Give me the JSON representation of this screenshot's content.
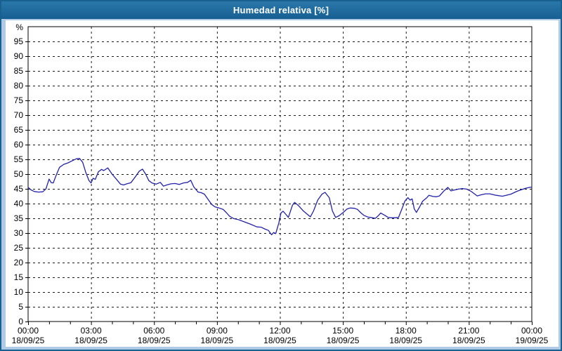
{
  "window": {
    "title": "Humedad relativa [%]"
  },
  "colors": {
    "titlebar_bg": "#1A689C",
    "outer_bg": "#AECAE4",
    "outer_border": "#17608F",
    "panel_bg": "#FFFFFF",
    "line": "#2121AA",
    "grid": "#1A1A1A",
    "text": "#000000"
  },
  "chart_data": {
    "type": "line",
    "title": "Humedad relativa [%]",
    "ylabel": "%",
    "xlabel": "",
    "xlim_hours": [
      0,
      24
    ],
    "ylim": [
      0,
      100
    ],
    "grid": "dashed; horizontal every 5 units, vertical every 3 hours",
    "legend": "none",
    "y_ticks": [
      0,
      5,
      10,
      15,
      20,
      25,
      30,
      35,
      40,
      45,
      50,
      55,
      60,
      65,
      70,
      75,
      80,
      85,
      90,
      95
    ],
    "y_unit_label": "%",
    "x_minor_tick_every_hours": 1,
    "x_major_ticks": [
      {
        "hour": 0,
        "time": "00:00",
        "date": "18/09/25"
      },
      {
        "hour": 3,
        "time": "03:00",
        "date": "18/09/25"
      },
      {
        "hour": 6,
        "time": "06:00",
        "date": "18/09/25"
      },
      {
        "hour": 9,
        "time": "09:00",
        "date": "18/09/25"
      },
      {
        "hour": 12,
        "time": "12:00",
        "date": "18/09/25"
      },
      {
        "hour": 15,
        "time": "15:00",
        "date": "18/09/25"
      },
      {
        "hour": 18,
        "time": "18:00",
        "date": "18/09/25"
      },
      {
        "hour": 21,
        "time": "21:00",
        "date": "18/09/25"
      },
      {
        "hour": 24,
        "time": "00:00",
        "date": "19/09/25"
      }
    ],
    "series": [
      {
        "name": "Humedad relativa",
        "color": "#2121AA",
        "points": [
          [
            0.0,
            45.5
          ],
          [
            0.15,
            44.6
          ],
          [
            0.3,
            44.1
          ],
          [
            0.5,
            43.9
          ],
          [
            0.7,
            44.0
          ],
          [
            0.85,
            45.0
          ],
          [
            1.0,
            48.3
          ],
          [
            1.1,
            47.1
          ],
          [
            1.2,
            47.0
          ],
          [
            1.35,
            49.8
          ],
          [
            1.5,
            52.3
          ],
          [
            1.7,
            53.3
          ],
          [
            1.9,
            53.8
          ],
          [
            2.1,
            54.5
          ],
          [
            2.3,
            55.2
          ],
          [
            2.45,
            55.3
          ],
          [
            2.6,
            54.0
          ],
          [
            2.75,
            50.5
          ],
          [
            2.9,
            47.8
          ],
          [
            3.0,
            47.0
          ],
          [
            3.1,
            48.6
          ],
          [
            3.2,
            48.2
          ],
          [
            3.35,
            50.8
          ],
          [
            3.5,
            51.6
          ],
          [
            3.6,
            51.2
          ],
          [
            3.8,
            52.1
          ],
          [
            4.0,
            50.0
          ],
          [
            4.2,
            48.3
          ],
          [
            4.4,
            46.6
          ],
          [
            4.55,
            46.3
          ],
          [
            4.7,
            46.7
          ],
          [
            4.9,
            47.1
          ],
          [
            5.1,
            49.0
          ],
          [
            5.3,
            51.0
          ],
          [
            5.45,
            51.7
          ],
          [
            5.6,
            50.0
          ],
          [
            5.75,
            47.8
          ],
          [
            5.9,
            47.0
          ],
          [
            6.1,
            46.6
          ],
          [
            6.3,
            47.2
          ],
          [
            6.45,
            45.9
          ],
          [
            6.6,
            46.3
          ],
          [
            6.8,
            46.7
          ],
          [
            7.0,
            46.8
          ],
          [
            7.2,
            46.5
          ],
          [
            7.4,
            47.0
          ],
          [
            7.6,
            47.2
          ],
          [
            7.75,
            47.9
          ],
          [
            7.9,
            45.6
          ],
          [
            8.1,
            43.9
          ],
          [
            8.25,
            43.7
          ],
          [
            8.4,
            43.2
          ],
          [
            8.6,
            41.2
          ],
          [
            8.75,
            39.7
          ],
          [
            8.9,
            38.9
          ],
          [
            9.1,
            38.5
          ],
          [
            9.3,
            38.0
          ],
          [
            9.45,
            36.9
          ],
          [
            9.6,
            35.7
          ],
          [
            9.8,
            34.9
          ],
          [
            10.0,
            34.6
          ],
          [
            10.3,
            33.8
          ],
          [
            10.6,
            33.0
          ],
          [
            10.9,
            32.1
          ],
          [
            11.1,
            32.0
          ],
          [
            11.3,
            31.3
          ],
          [
            11.45,
            30.9
          ],
          [
            11.6,
            29.4
          ],
          [
            11.7,
            30.2
          ],
          [
            11.8,
            29.8
          ],
          [
            11.95,
            33.5
          ],
          [
            12.05,
            36.8
          ],
          [
            12.15,
            37.4
          ],
          [
            12.3,
            36.2
          ],
          [
            12.4,
            35.3
          ],
          [
            12.6,
            39.5
          ],
          [
            12.7,
            40.4
          ],
          [
            12.9,
            39.2
          ],
          [
            13.1,
            37.6
          ],
          [
            13.3,
            36.4
          ],
          [
            13.45,
            35.5
          ],
          [
            13.6,
            37.5
          ],
          [
            13.8,
            41.2
          ],
          [
            14.0,
            43.2
          ],
          [
            14.15,
            43.8
          ],
          [
            14.35,
            42.0
          ],
          [
            14.5,
            37.5
          ],
          [
            14.65,
            35.3
          ],
          [
            14.8,
            35.8
          ],
          [
            15.0,
            36.9
          ],
          [
            15.2,
            38.2
          ],
          [
            15.35,
            38.5
          ],
          [
            15.55,
            38.4
          ],
          [
            15.7,
            38.0
          ],
          [
            15.85,
            36.9
          ],
          [
            16.0,
            36.0
          ],
          [
            16.2,
            35.4
          ],
          [
            16.4,
            35.2
          ],
          [
            16.55,
            35.0
          ],
          [
            16.7,
            36.0
          ],
          [
            16.8,
            36.8
          ],
          [
            17.0,
            36.0
          ],
          [
            17.15,
            35.3
          ],
          [
            17.3,
            35.2
          ],
          [
            17.5,
            35.2
          ],
          [
            17.65,
            35.3
          ],
          [
            17.8,
            38.0
          ],
          [
            17.95,
            40.8
          ],
          [
            18.1,
            42.0
          ],
          [
            18.2,
            41.2
          ],
          [
            18.3,
            41.6
          ],
          [
            18.4,
            38.2
          ],
          [
            18.5,
            37.0
          ],
          [
            18.65,
            38.8
          ],
          [
            18.8,
            40.8
          ],
          [
            19.0,
            42.0
          ],
          [
            19.1,
            42.8
          ],
          [
            19.3,
            42.4
          ],
          [
            19.45,
            42.3
          ],
          [
            19.6,
            42.6
          ],
          [
            19.8,
            44.2
          ],
          [
            20.0,
            45.5
          ],
          [
            20.15,
            44.3
          ],
          [
            20.3,
            44.6
          ],
          [
            20.5,
            44.9
          ],
          [
            20.7,
            45.1
          ],
          [
            20.9,
            44.9
          ],
          [
            21.1,
            44.2
          ],
          [
            21.4,
            42.6
          ],
          [
            21.6,
            43.0
          ],
          [
            21.8,
            43.3
          ],
          [
            22.0,
            43.3
          ],
          [
            22.3,
            42.8
          ],
          [
            22.6,
            42.5
          ],
          [
            23.0,
            43.2
          ],
          [
            23.3,
            44.2
          ],
          [
            23.7,
            45.2
          ],
          [
            23.9,
            45.5
          ],
          [
            24.0,
            45.6
          ]
        ]
      }
    ]
  }
}
